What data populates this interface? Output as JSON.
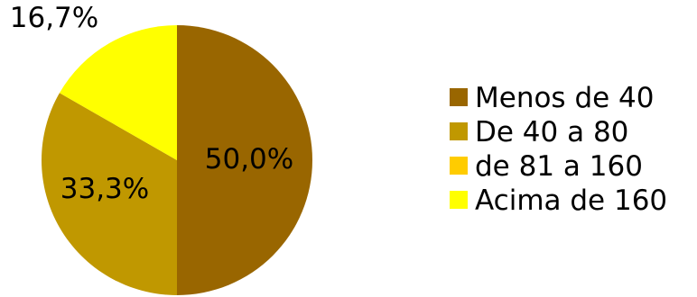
{
  "chart_data": {
    "type": "pie",
    "categories": [
      "Menos de 40",
      "De 40 a 80",
      "de 81 a 160",
      "Acima de 160"
    ],
    "values": [
      50.0,
      33.3,
      0.0,
      16.7
    ],
    "data_labels": [
      "50,0%",
      "33,3%",
      "",
      "16,7%"
    ],
    "colors": [
      "#996600",
      "#C09800",
      "#FFCC00",
      "#FFFF00"
    ],
    "legend_position": "right"
  }
}
